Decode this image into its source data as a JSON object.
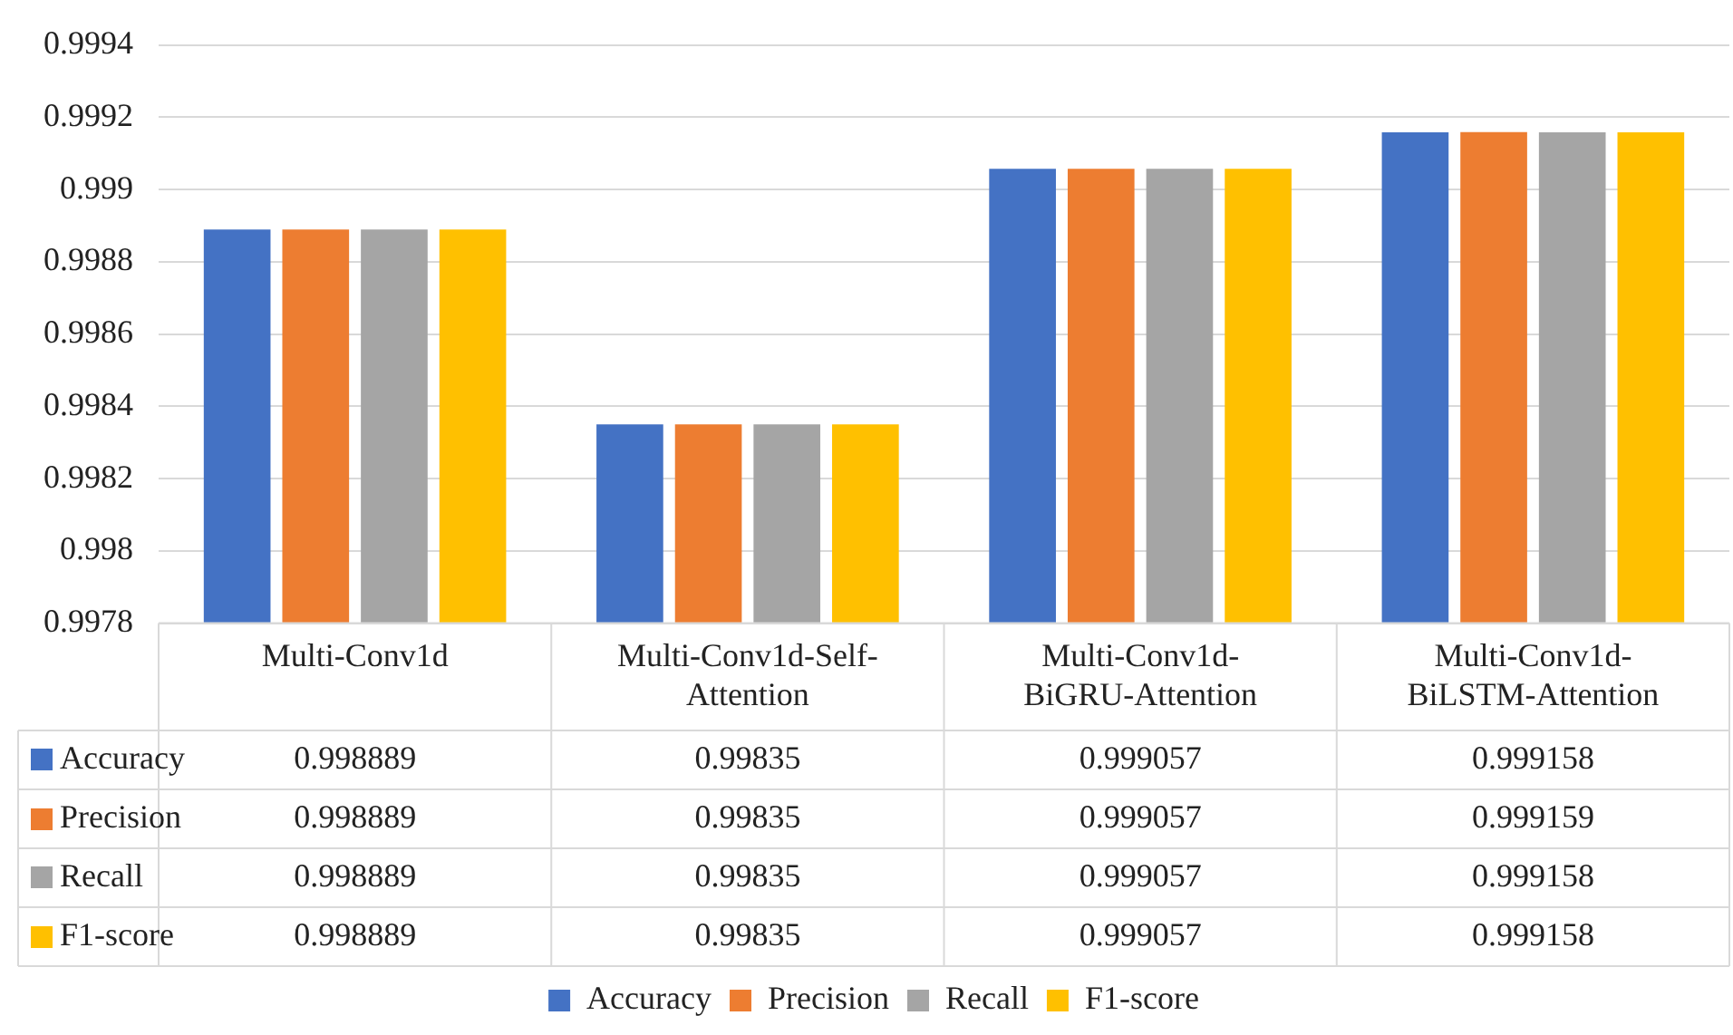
{
  "chart_data": {
    "type": "bar",
    "categories": [
      "Multi-Conv1d",
      "Multi-Conv1d-Self-Attention",
      "Multi-Conv1d-BiGRU-Attention",
      "Multi-Conv1d-BiLSTM-Attention"
    ],
    "series": [
      {
        "name": "Accuracy",
        "color": "#4472c4",
        "values": [
          0.998889,
          0.99835,
          0.999057,
          0.999158
        ]
      },
      {
        "name": "Precision",
        "color": "#ed7d31",
        "values": [
          0.998889,
          0.99835,
          0.999057,
          0.999159
        ]
      },
      {
        "name": "Recall",
        "color": "#a5a5a5",
        "values": [
          0.998889,
          0.99835,
          0.999057,
          0.999158
        ]
      },
      {
        "name": "F1-score",
        "color": "#ffc000",
        "values": [
          0.998889,
          0.99835,
          0.999057,
          0.999158
        ]
      }
    ],
    "ylim": [
      0.9978,
      0.9994
    ],
    "yticks": [
      0.9978,
      0.998,
      0.9982,
      0.9984,
      0.9986,
      0.9988,
      0.999,
      0.9992,
      0.9994
    ],
    "grid": "y",
    "legend": "bottom",
    "data_labels": true
  }
}
